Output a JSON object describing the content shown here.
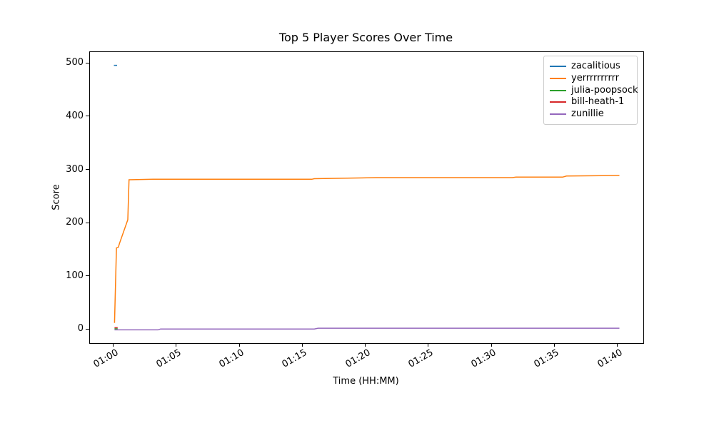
{
  "chart_data": {
    "type": "line",
    "title": "Top 5 Player Scores Over Time",
    "xlabel": "Time (HH:MM)",
    "ylabel": "Score",
    "x_axis_unit": "minutes since 00:00",
    "xlim_minutes": [
      58.1,
      102.0
    ],
    "ylim": [
      -25,
      522
    ],
    "grid": false,
    "legend_position": "upper right",
    "x_ticks": [
      {
        "t": 60,
        "label": "01:00"
      },
      {
        "t": 65,
        "label": "01:05"
      },
      {
        "t": 70,
        "label": "01:10"
      },
      {
        "t": 75,
        "label": "01:15"
      },
      {
        "t": 80,
        "label": "01:20"
      },
      {
        "t": 85,
        "label": "01:25"
      },
      {
        "t": 90,
        "label": "01:30"
      },
      {
        "t": 95,
        "label": "01:35"
      },
      {
        "t": 100,
        "label": "01:40"
      }
    ],
    "y_ticks": [
      0,
      100,
      200,
      300,
      400,
      500
    ],
    "series": [
      {
        "name": "zacalitious",
        "color": "#1f77b4",
        "points": [
          [
            60.0,
            497
          ],
          [
            60.25,
            497
          ]
        ]
      },
      {
        "name": "yerrrrrrrrrr",
        "color": "#ff7f0e",
        "points": [
          [
            60.05,
            13
          ],
          [
            60.2,
            154
          ],
          [
            60.35,
            155
          ],
          [
            60.45,
            163
          ],
          [
            61.1,
            207
          ],
          [
            61.2,
            282
          ],
          [
            63.1,
            283
          ],
          [
            75.7,
            283
          ],
          [
            75.9,
            284
          ],
          [
            78.5,
            285
          ],
          [
            80.8,
            286
          ],
          [
            91.6,
            286
          ],
          [
            91.9,
            287
          ],
          [
            95.6,
            287
          ],
          [
            95.9,
            289
          ],
          [
            100.1,
            290
          ]
        ]
      },
      {
        "name": "julia-poopsock",
        "color": "#2ca02c",
        "points": [
          [
            60.05,
            2
          ],
          [
            60.3,
            2
          ]
        ]
      },
      {
        "name": "bill-heath-1",
        "color": "#d62728",
        "points": [
          [
            60.05,
            4
          ],
          [
            60.3,
            4
          ]
        ]
      },
      {
        "name": "zunillie",
        "color": "#9467bd",
        "points": [
          [
            60.05,
            0
          ],
          [
            63.5,
            0
          ],
          [
            63.7,
            1.5
          ],
          [
            75.9,
            1.5
          ],
          [
            76.2,
            3
          ],
          [
            100.1,
            3
          ]
        ]
      }
    ]
  },
  "colors": {
    "background": "#ffffff",
    "spine": "#000000",
    "legend_border": "#cccccc"
  }
}
